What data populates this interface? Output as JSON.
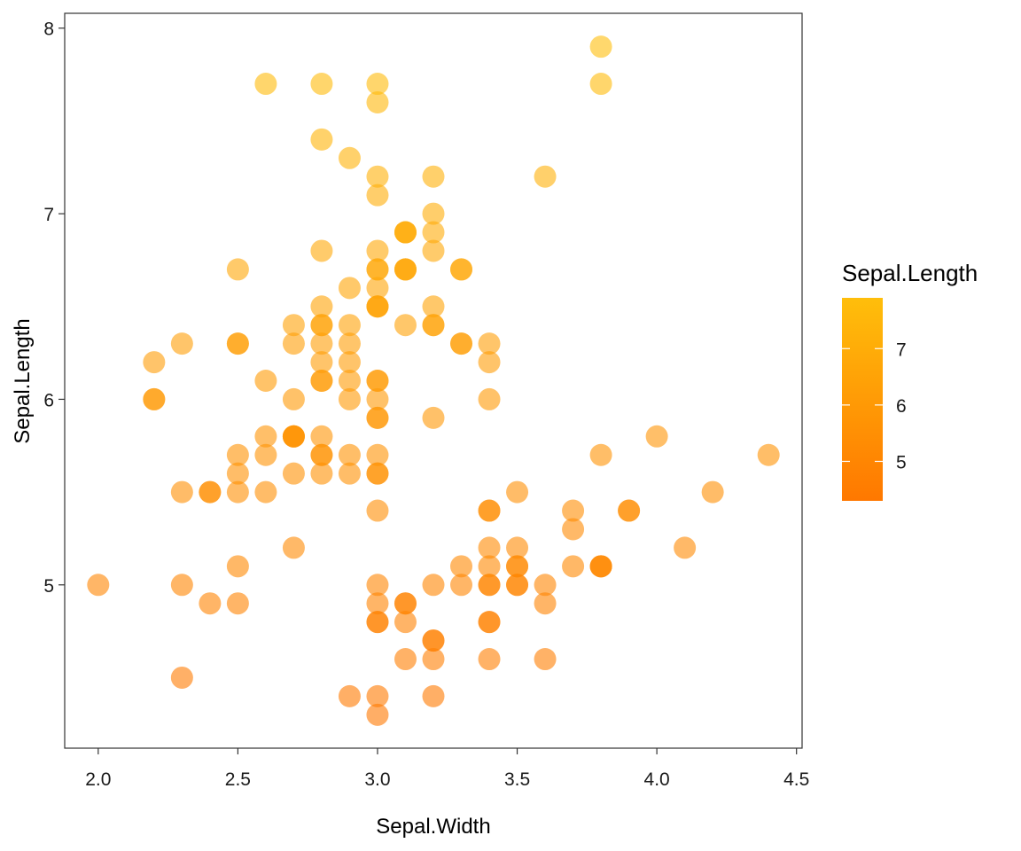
{
  "chart_data": {
    "type": "scatter",
    "xlabel": "Sepal.Width",
    "ylabel": "Sepal.Length",
    "xlim": [
      1.88,
      4.52
    ],
    "ylim": [
      4.12,
      8.08
    ],
    "x_ticks": [
      {
        "value": 2.0,
        "label": "2.0"
      },
      {
        "value": 2.5,
        "label": "2.5"
      },
      {
        "value": 3.0,
        "label": "3.0"
      },
      {
        "value": 3.5,
        "label": "3.5"
      },
      {
        "value": 4.0,
        "label": "4.0"
      },
      {
        "value": 4.5,
        "label": "4.5"
      }
    ],
    "y_ticks": [
      {
        "value": 5,
        "label": "5"
      },
      {
        "value": 6,
        "label": "6"
      },
      {
        "value": 7,
        "label": "7"
      },
      {
        "value": 8,
        "label": "8"
      }
    ],
    "grid": false,
    "point_opacity": 0.6,
    "color_scale": {
      "title": "Sepal.Length",
      "variable": "Sepal.Length",
      "low_color": "#FF7800",
      "high_color": "#FFBE0B",
      "domain": [
        4.3,
        7.9
      ],
      "breaks": [
        {
          "value": 5,
          "label": "5"
        },
        {
          "value": 6,
          "label": "6"
        },
        {
          "value": 7,
          "label": "7"
        }
      ]
    },
    "legend_position": "right",
    "points": [
      {
        "x": 3.5,
        "y": 5.1
      },
      {
        "x": 3.0,
        "y": 4.9
      },
      {
        "x": 3.2,
        "y": 4.7
      },
      {
        "x": 3.1,
        "y": 4.6
      },
      {
        "x": 3.6,
        "y": 5.0
      },
      {
        "x": 3.9,
        "y": 5.4
      },
      {
        "x": 3.4,
        "y": 4.6
      },
      {
        "x": 3.4,
        "y": 5.0
      },
      {
        "x": 2.9,
        "y": 4.4
      },
      {
        "x": 3.1,
        "y": 4.9
      },
      {
        "x": 3.7,
        "y": 5.4
      },
      {
        "x": 3.4,
        "y": 4.8
      },
      {
        "x": 3.0,
        "y": 4.8
      },
      {
        "x": 3.0,
        "y": 4.3
      },
      {
        "x": 4.0,
        "y": 5.8
      },
      {
        "x": 4.4,
        "y": 5.7
      },
      {
        "x": 3.9,
        "y": 5.4
      },
      {
        "x": 3.5,
        "y": 5.1
      },
      {
        "x": 3.8,
        "y": 5.7
      },
      {
        "x": 3.8,
        "y": 5.1
      },
      {
        "x": 3.4,
        "y": 5.4
      },
      {
        "x": 3.7,
        "y": 5.1
      },
      {
        "x": 3.6,
        "y": 4.6
      },
      {
        "x": 3.3,
        "y": 5.1
      },
      {
        "x": 3.4,
        "y": 4.8
      },
      {
        "x": 3.0,
        "y": 5.0
      },
      {
        "x": 3.4,
        "y": 5.0
      },
      {
        "x": 3.5,
        "y": 5.2
      },
      {
        "x": 3.4,
        "y": 5.2
      },
      {
        "x": 3.2,
        "y": 4.7
      },
      {
        "x": 3.1,
        "y": 4.8
      },
      {
        "x": 3.4,
        "y": 5.4
      },
      {
        "x": 4.1,
        "y": 5.2
      },
      {
        "x": 4.2,
        "y": 5.5
      },
      {
        "x": 3.1,
        "y": 4.9
      },
      {
        "x": 3.2,
        "y": 5.0
      },
      {
        "x": 3.5,
        "y": 5.5
      },
      {
        "x": 3.6,
        "y": 4.9
      },
      {
        "x": 3.0,
        "y": 4.4
      },
      {
        "x": 3.4,
        "y": 5.1
      },
      {
        "x": 3.5,
        "y": 5.0
      },
      {
        "x": 2.3,
        "y": 4.5
      },
      {
        "x": 3.2,
        "y": 4.4
      },
      {
        "x": 3.5,
        "y": 5.0
      },
      {
        "x": 3.8,
        "y": 5.1
      },
      {
        "x": 3.0,
        "y": 4.8
      },
      {
        "x": 3.8,
        "y": 5.1
      },
      {
        "x": 3.2,
        "y": 4.6
      },
      {
        "x": 3.7,
        "y": 5.3
      },
      {
        "x": 3.3,
        "y": 5.0
      },
      {
        "x": 3.2,
        "y": 7.0
      },
      {
        "x": 3.2,
        "y": 6.4
      },
      {
        "x": 3.1,
        "y": 6.9
      },
      {
        "x": 2.3,
        "y": 5.5
      },
      {
        "x": 2.8,
        "y": 6.5
      },
      {
        "x": 2.8,
        "y": 5.7
      },
      {
        "x": 3.3,
        "y": 6.3
      },
      {
        "x": 2.4,
        "y": 4.9
      },
      {
        "x": 2.9,
        "y": 6.6
      },
      {
        "x": 2.7,
        "y": 5.2
      },
      {
        "x": 2.0,
        "y": 5.0
      },
      {
        "x": 3.0,
        "y": 5.9
      },
      {
        "x": 2.2,
        "y": 6.0
      },
      {
        "x": 2.9,
        "y": 6.1
      },
      {
        "x": 2.9,
        "y": 5.6
      },
      {
        "x": 3.1,
        "y": 6.7
      },
      {
        "x": 3.0,
        "y": 5.6
      },
      {
        "x": 2.7,
        "y": 5.8
      },
      {
        "x": 2.2,
        "y": 6.2
      },
      {
        "x": 2.5,
        "y": 5.6
      },
      {
        "x": 3.2,
        "y": 5.9
      },
      {
        "x": 2.8,
        "y": 6.1
      },
      {
        "x": 2.5,
        "y": 6.3
      },
      {
        "x": 2.8,
        "y": 6.1
      },
      {
        "x": 2.9,
        "y": 6.4
      },
      {
        "x": 3.0,
        "y": 6.6
      },
      {
        "x": 2.8,
        "y": 6.8
      },
      {
        "x": 3.0,
        "y": 6.7
      },
      {
        "x": 2.9,
        "y": 6.0
      },
      {
        "x": 2.6,
        "y": 5.7
      },
      {
        "x": 2.4,
        "y": 5.5
      },
      {
        "x": 2.4,
        "y": 5.5
      },
      {
        "x": 2.7,
        "y": 5.8
      },
      {
        "x": 2.7,
        "y": 6.0
      },
      {
        "x": 3.0,
        "y": 5.4
      },
      {
        "x": 3.4,
        "y": 6.0
      },
      {
        "x": 3.1,
        "y": 6.7
      },
      {
        "x": 2.3,
        "y": 6.3
      },
      {
        "x": 3.0,
        "y": 5.6
      },
      {
        "x": 2.5,
        "y": 5.5
      },
      {
        "x": 2.6,
        "y": 5.5
      },
      {
        "x": 3.0,
        "y": 6.1
      },
      {
        "x": 2.6,
        "y": 5.8
      },
      {
        "x": 2.3,
        "y": 5.0
      },
      {
        "x": 2.7,
        "y": 5.6
      },
      {
        "x": 3.0,
        "y": 5.7
      },
      {
        "x": 2.9,
        "y": 5.7
      },
      {
        "x": 2.9,
        "y": 6.2
      },
      {
        "x": 2.5,
        "y": 5.1
      },
      {
        "x": 2.8,
        "y": 5.7
      },
      {
        "x": 3.3,
        "y": 6.3
      },
      {
        "x": 2.7,
        "y": 5.8
      },
      {
        "x": 3.0,
        "y": 7.1
      },
      {
        "x": 2.9,
        "y": 6.3
      },
      {
        "x": 3.0,
        "y": 6.5
      },
      {
        "x": 3.0,
        "y": 7.6
      },
      {
        "x": 2.5,
        "y": 4.9
      },
      {
        "x": 2.9,
        "y": 7.3
      },
      {
        "x": 2.5,
        "y": 6.7
      },
      {
        "x": 3.6,
        "y": 7.2
      },
      {
        "x": 3.2,
        "y": 6.5
      },
      {
        "x": 2.7,
        "y": 6.4
      },
      {
        "x": 3.0,
        "y": 6.8
      },
      {
        "x": 2.5,
        "y": 5.7
      },
      {
        "x": 2.8,
        "y": 5.8
      },
      {
        "x": 3.2,
        "y": 6.4
      },
      {
        "x": 3.0,
        "y": 6.5
      },
      {
        "x": 3.8,
        "y": 7.7
      },
      {
        "x": 2.6,
        "y": 7.7
      },
      {
        "x": 2.2,
        "y": 6.0
      },
      {
        "x": 3.2,
        "y": 6.9
      },
      {
        "x": 2.8,
        "y": 5.6
      },
      {
        "x": 2.8,
        "y": 7.7
      },
      {
        "x": 2.7,
        "y": 6.3
      },
      {
        "x": 3.3,
        "y": 6.7
      },
      {
        "x": 3.2,
        "y": 7.2
      },
      {
        "x": 2.8,
        "y": 6.2
      },
      {
        "x": 3.0,
        "y": 6.1
      },
      {
        "x": 2.8,
        "y": 6.4
      },
      {
        "x": 3.0,
        "y": 7.2
      },
      {
        "x": 2.8,
        "y": 7.4
      },
      {
        "x": 3.8,
        "y": 7.9
      },
      {
        "x": 2.8,
        "y": 6.4
      },
      {
        "x": 2.8,
        "y": 6.3
      },
      {
        "x": 2.6,
        "y": 6.1
      },
      {
        "x": 3.0,
        "y": 7.7
      },
      {
        "x": 3.4,
        "y": 6.3
      },
      {
        "x": 3.1,
        "y": 6.4
      },
      {
        "x": 3.0,
        "y": 6.0
      },
      {
        "x": 3.1,
        "y": 6.9
      },
      {
        "x": 3.1,
        "y": 6.7
      },
      {
        "x": 3.1,
        "y": 6.9
      },
      {
        "x": 2.7,
        "y": 5.8
      },
      {
        "x": 3.2,
        "y": 6.8
      },
      {
        "x": 3.3,
        "y": 6.7
      },
      {
        "x": 3.0,
        "y": 6.7
      },
      {
        "x": 2.5,
        "y": 6.3
      },
      {
        "x": 3.0,
        "y": 6.5
      },
      {
        "x": 3.4,
        "y": 6.2
      },
      {
        "x": 3.0,
        "y": 5.9
      }
    ]
  }
}
